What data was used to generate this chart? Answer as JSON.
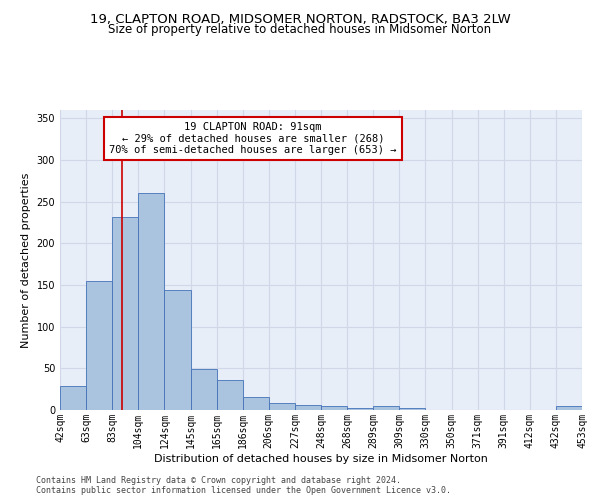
{
  "title_line1": "19, CLAPTON ROAD, MIDSOMER NORTON, RADSTOCK, BA3 2LW",
  "title_line2": "Size of property relative to detached houses in Midsomer Norton",
  "xlabel": "Distribution of detached houses by size in Midsomer Norton",
  "ylabel": "Number of detached properties",
  "footer_line1": "Contains HM Land Registry data © Crown copyright and database right 2024.",
  "footer_line2": "Contains public sector information licensed under the Open Government Licence v3.0.",
  "annotation_line1": "19 CLAPTON ROAD: 91sqm",
  "annotation_line2": "← 29% of detached houses are smaller (268)",
  "annotation_line3": "70% of semi-detached houses are larger (653) →",
  "property_size_sqm": 91,
  "bar_values": [
    29,
    155,
    232,
    260,
    144,
    49,
    36,
    16,
    9,
    6,
    5,
    3,
    5,
    3,
    0,
    0,
    0,
    0,
    0,
    5
  ],
  "bin_labels": [
    "42sqm",
    "63sqm",
    "83sqm",
    "104sqm",
    "124sqm",
    "145sqm",
    "165sqm",
    "186sqm",
    "206sqm",
    "227sqm",
    "248sqm",
    "268sqm",
    "289sqm",
    "309sqm",
    "330sqm",
    "350sqm",
    "371sqm",
    "391sqm",
    "412sqm",
    "432sqm",
    "453sqm"
  ],
  "bar_color": "#aac4e0",
  "bar_edge_color": "#4472b8",
  "red_line_color": "#cc0000",
  "annotation_box_color": "#cc0000",
  "background_color": "#ffffff",
  "grid_color": "#d0d8e8",
  "ylim": [
    0,
    360
  ],
  "yticks": [
    0,
    50,
    100,
    150,
    200,
    250,
    300,
    350
  ],
  "title_fontsize": 9.5,
  "subtitle_fontsize": 8.5,
  "axis_label_fontsize": 8,
  "tick_fontsize": 7,
  "footer_fontsize": 6,
  "annotation_fontsize": 7.5
}
